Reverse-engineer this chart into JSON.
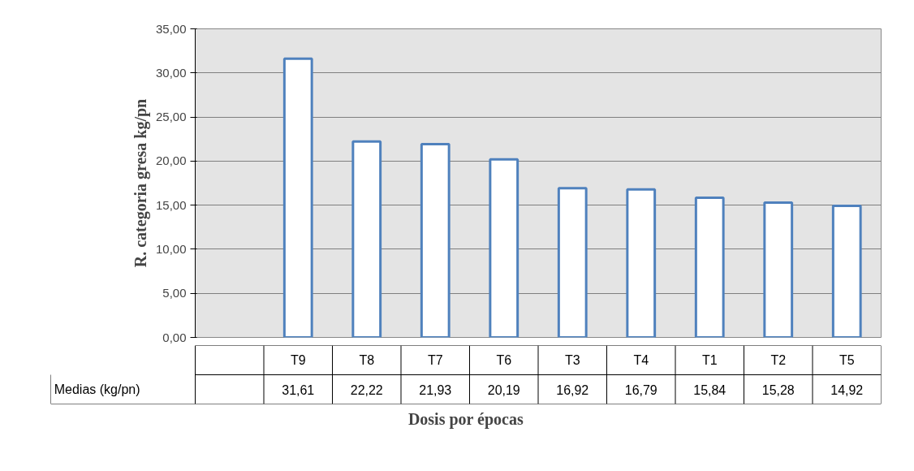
{
  "chart_data": {
    "type": "bar",
    "xlabel": "Dosis por épocas",
    "ylabel": "R. categoria gresa kg/pn",
    "categories": [
      null,
      "T9",
      "T8",
      "T7",
      "T6",
      "T3",
      "T4",
      "T1",
      "T2",
      "T5"
    ],
    "series": [
      {
        "name": "Medias (kg/pn)",
        "color": "#4f81bd",
        "values": [
          null,
          31.61,
          22.22,
          21.93,
          20.19,
          16.92,
          16.79,
          15.84,
          15.28,
          14.92
        ],
        "value_labels": [
          null,
          "31,61",
          "22,22",
          "21,93",
          "20,19",
          "16,92",
          "16,79",
          "15,84",
          "15,28",
          "14,92"
        ]
      }
    ],
    "ylim": [
      0,
      35
    ],
    "yticks": [
      {
        "value": 0,
        "label": "0,00"
      },
      {
        "value": 5,
        "label": "5,00"
      },
      {
        "value": 10,
        "label": "10,00"
      },
      {
        "value": 15,
        "label": "15,00"
      },
      {
        "value": 20,
        "label": "20,00"
      },
      {
        "value": 25,
        "label": "25,00"
      },
      {
        "value": 30,
        "label": "30,00"
      },
      {
        "value": 35,
        "label": "35,00"
      }
    ],
    "grid": "y"
  }
}
